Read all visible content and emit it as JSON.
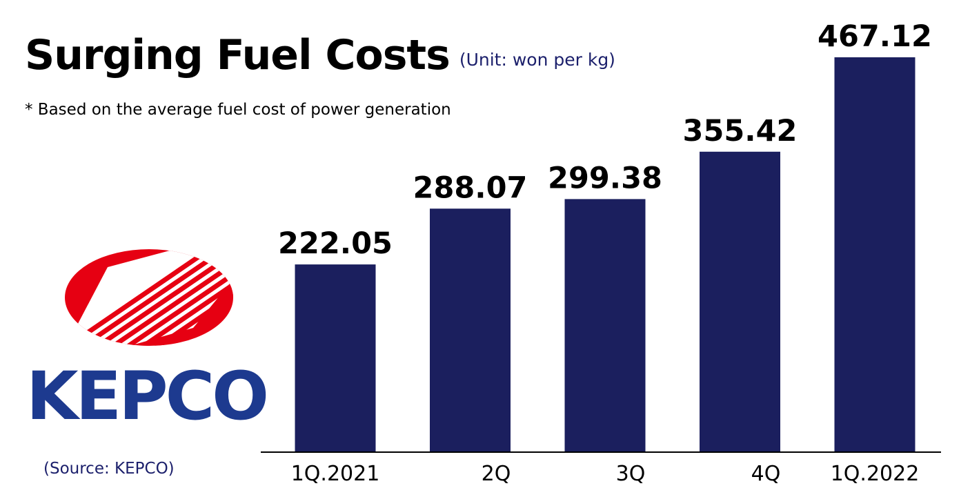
{
  "header": {
    "title": "Surging Fuel Costs",
    "unit_note": "(Unit: won per kg)",
    "subtitle": "* Based on the average fuel cost of power generation"
  },
  "footer": {
    "source": "(Source: KEPCO)"
  },
  "logo": {
    "wordmark": "KEPCO",
    "emblem_icon": "kepco-emblem-icon",
    "colors": {
      "emblem": "#e60012",
      "wordmark": "#1d3a8f"
    }
  },
  "colors": {
    "bar": "#1b1f5e",
    "unit_text": "#1b1f6b",
    "axis": "#000000"
  },
  "chart_data": {
    "type": "bar",
    "title": "Surging Fuel Costs",
    "categories": [
      "1Q.2021",
      "2Q",
      "3Q",
      "4Q",
      "1Q.2022"
    ],
    "values": [
      222.05,
      288.07,
      299.38,
      355.42,
      467.12
    ],
    "value_labels": [
      "222.05",
      "288.07",
      "299.38",
      "355.42",
      "467.12"
    ],
    "xlabel": "",
    "ylabel": "",
    "ylim": [
      0,
      467.12
    ],
    "grid": false,
    "legend": "none"
  }
}
